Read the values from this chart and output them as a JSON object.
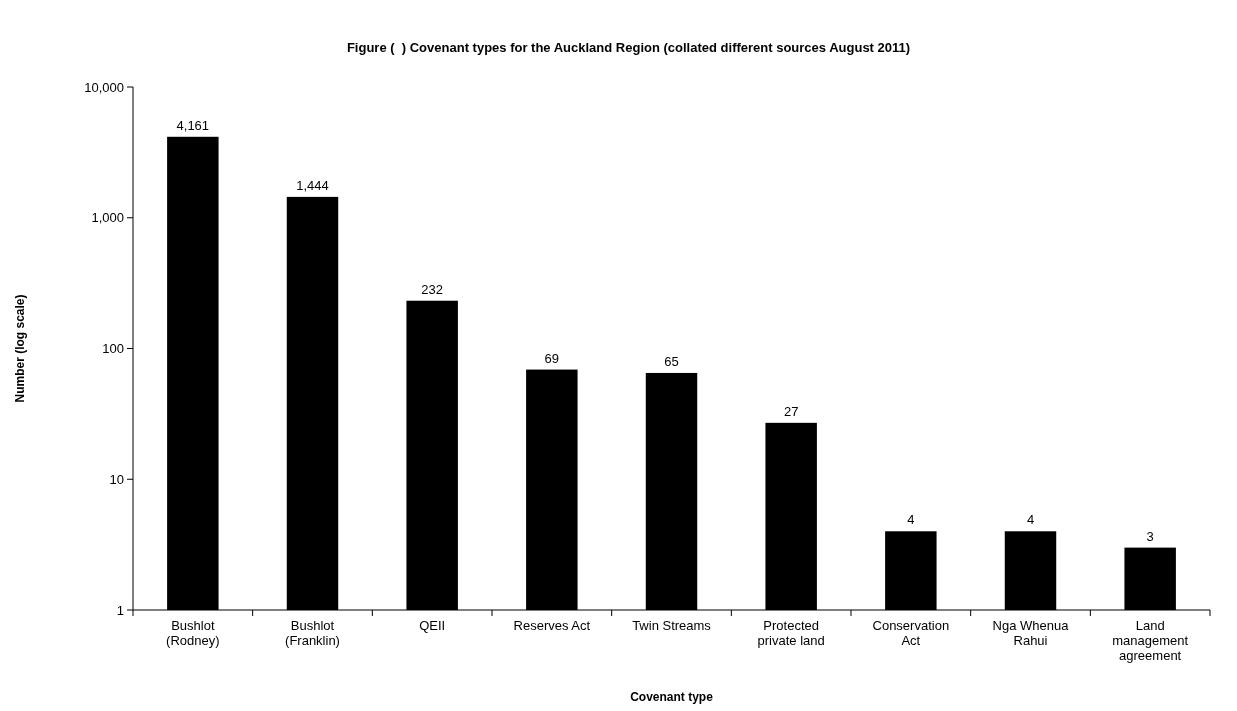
{
  "chart_data": {
    "type": "bar",
    "title": "Figure (  ) Covenant types for the Auckland Region (collated different sources August 2011)",
    "xlabel": "Covenant type",
    "ylabel": "Number (log scale)",
    "categories": [
      "Bushlot (Rodney)",
      "Bushlot (Franklin)",
      "QEII",
      "Reserves Act",
      "Twin Streams",
      "Protected private land",
      "Conservation Act",
      "Nga Whenua Rahui",
      "Land management agreement"
    ],
    "values": [
      4161,
      1444,
      232,
      69,
      65,
      27,
      4,
      4,
      3
    ],
    "color": "#000000",
    "log": true,
    "ylim": [
      1,
      10000
    ],
    "yticks": [
      1,
      10,
      100,
      {
        "value": 1000,
        "label": "1,000"
      },
      {
        "value": 10000,
        "label": "10,000"
      }
    ],
    "value_labels": [
      "4,161",
      "1,444",
      "232",
      "69",
      "65",
      "27",
      "4",
      "4",
      "3"
    ]
  }
}
